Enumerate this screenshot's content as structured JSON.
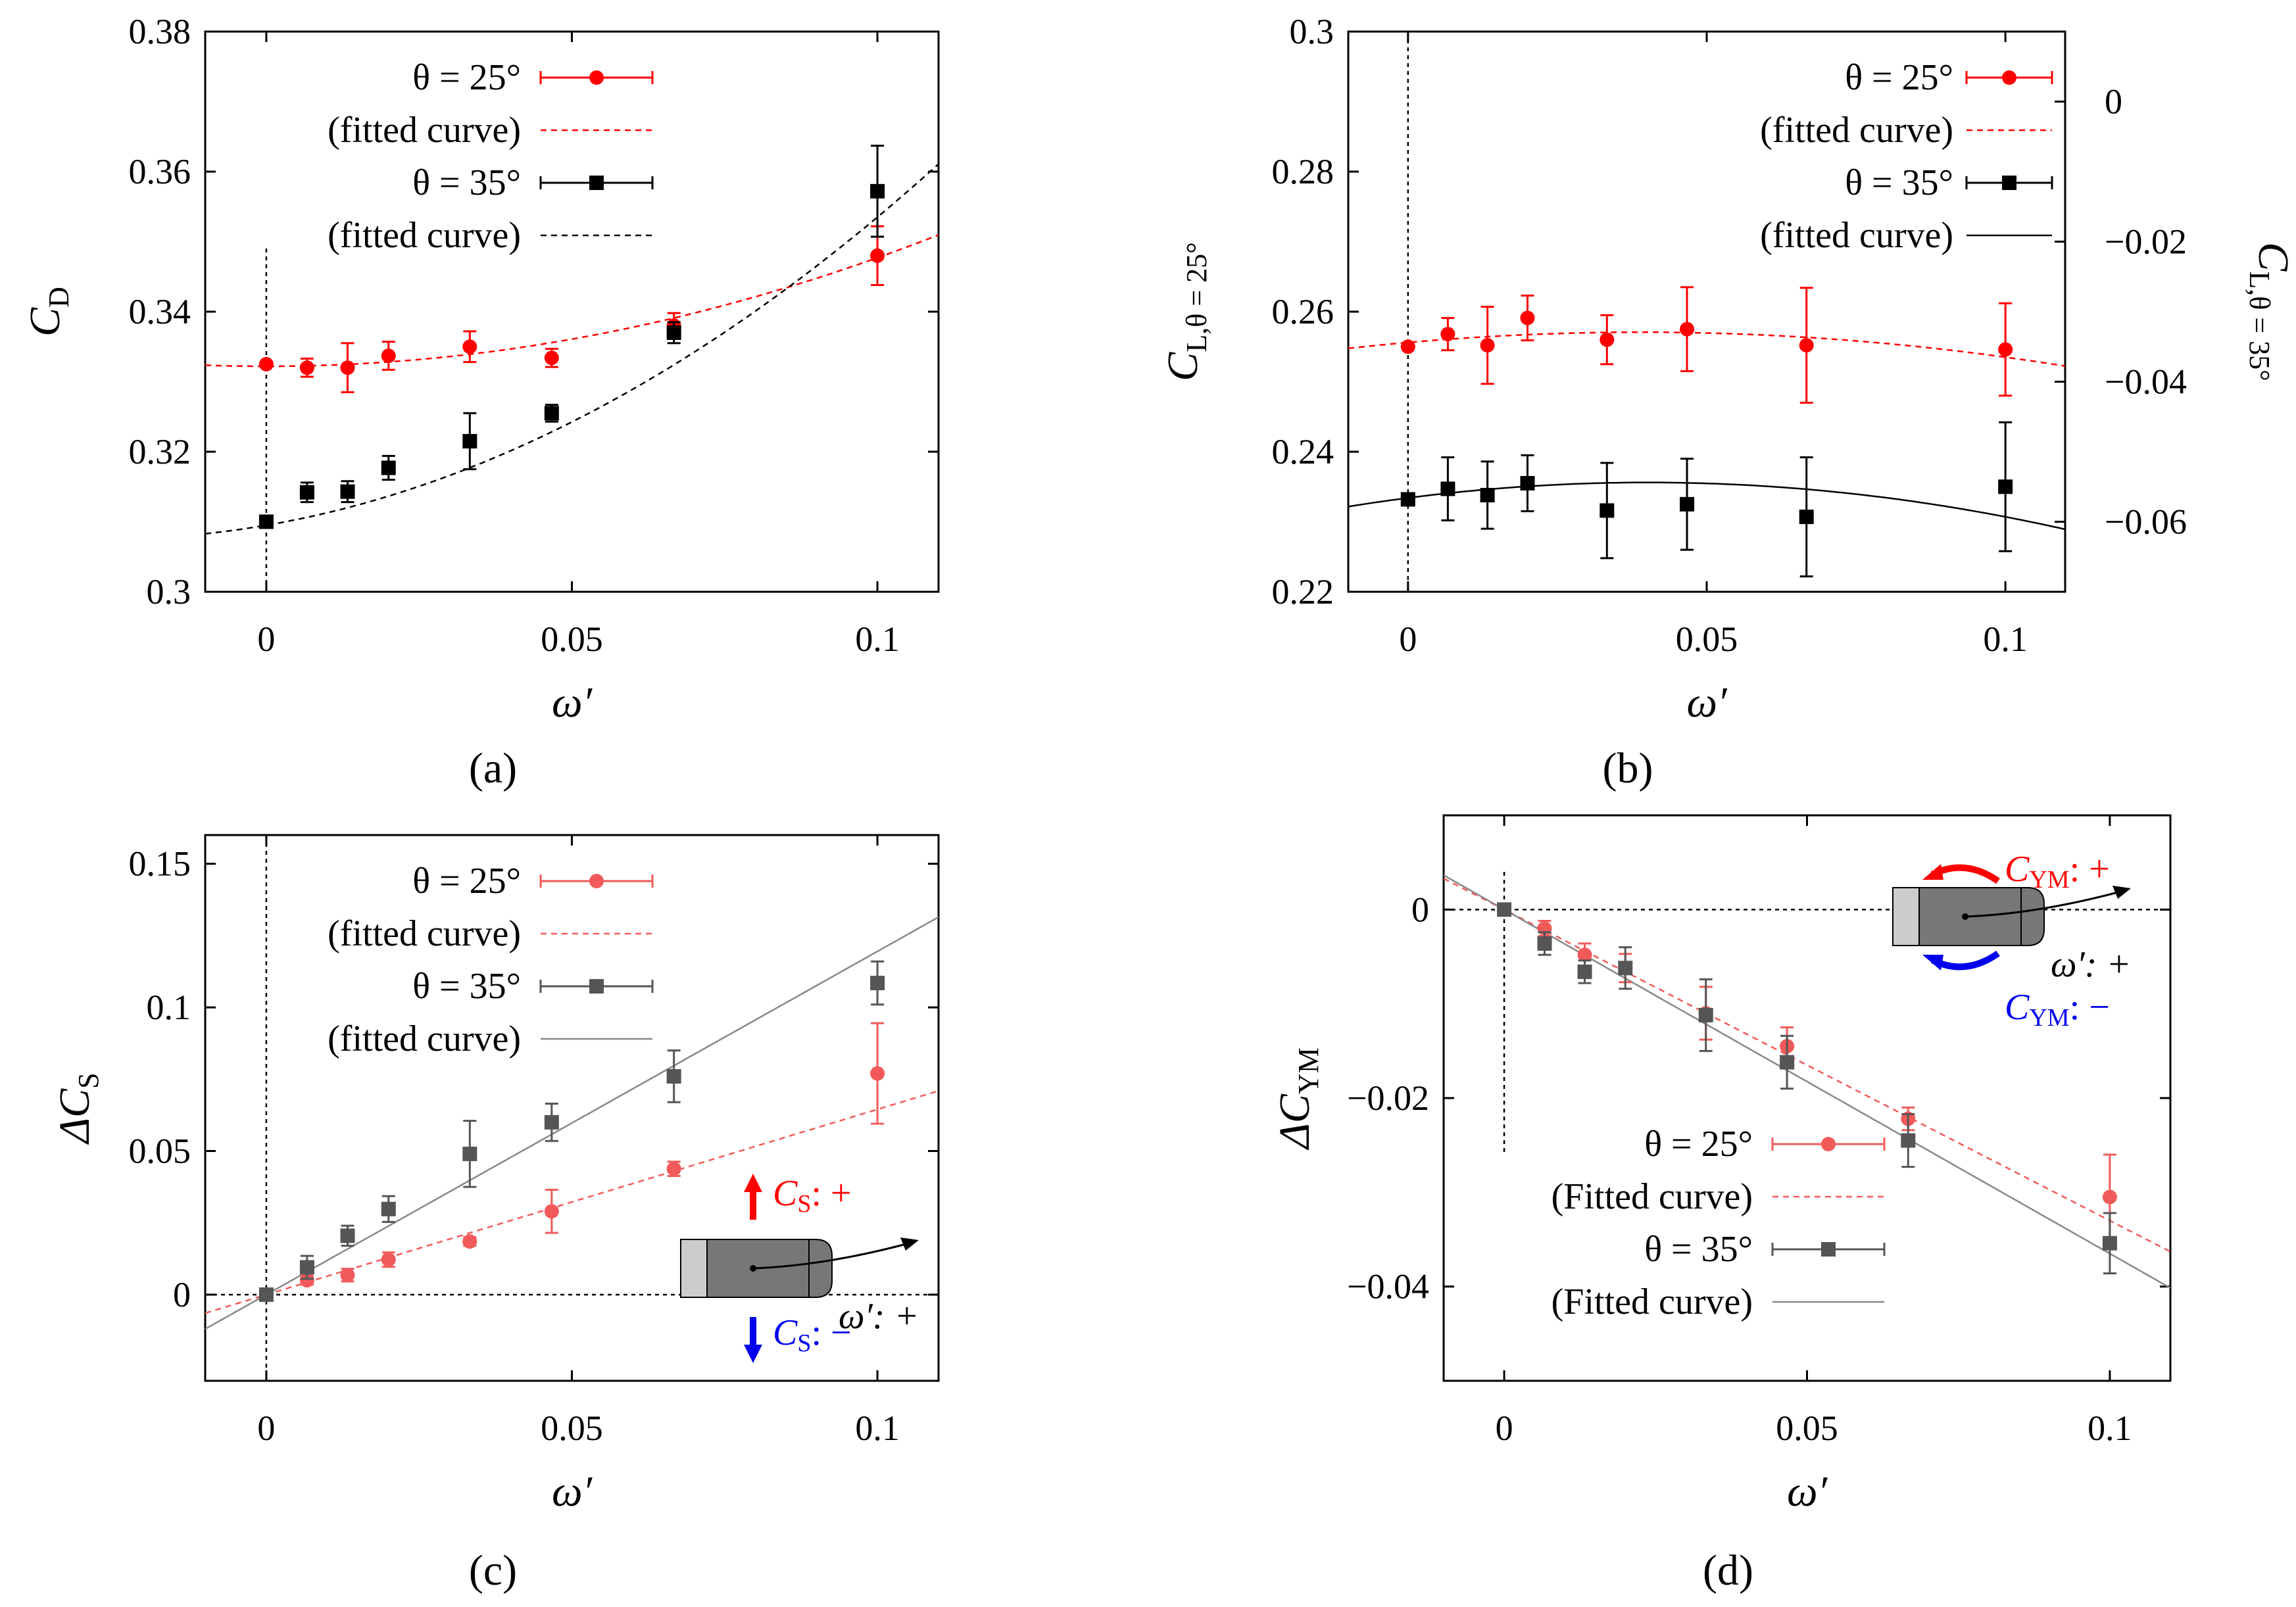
{
  "figure": {
    "captions": [
      "(a)",
      "(b)",
      "(c)",
      "(d)"
    ],
    "colors": {
      "theta25": "#ff0000",
      "theta35": "#000000",
      "theta25_light": "#f25a5a",
      "theta35_light": "#555555",
      "fit35_light": "#888888"
    }
  },
  "chart_data": [
    {
      "id": "a",
      "type": "scatter",
      "caption": "(a)",
      "xlabel": "ω′",
      "ylabel": "C",
      "ylabel_sub": "D",
      "xlim": [
        -0.01,
        0.11
      ],
      "ylim": [
        0.3,
        0.38
      ],
      "xticks": [
        0,
        0.05,
        0.1
      ],
      "xtick_labels": [
        "0",
        "0.05",
        "0.1"
      ],
      "yticks": [
        0.3,
        0.32,
        0.34,
        0.36,
        0.38
      ],
      "ytick_labels": [
        "0.3",
        "0.32",
        "0.34",
        "0.36",
        "0.38"
      ],
      "legend_position": "top-left",
      "legend": [
        "θ = 25°",
        "(fitted curve)",
        "θ = 35°",
        "(fitted curve)"
      ],
      "series": [
        {
          "name": "θ = 25°",
          "marker": "circle",
          "color": "#ff0000",
          "x": [
            0,
            0.00667,
            0.0133,
            0.02,
            0.0333,
            0.0467,
            0.0667,
            0.1
          ],
          "y": [
            0.3325,
            0.332,
            0.332,
            0.3337,
            0.335,
            0.3334,
            0.338,
            0.348
          ],
          "err": [
            0,
            0.0013,
            0.0035,
            0.002,
            0.0022,
            0.0013,
            0.0018,
            0.0042
          ]
        },
        {
          "name": "θ = 35°",
          "marker": "square",
          "color": "#000000",
          "x": [
            0,
            0.00667,
            0.0133,
            0.02,
            0.0333,
            0.0467,
            0.0667,
            0.1
          ],
          "y": [
            0.31,
            0.3142,
            0.3143,
            0.3177,
            0.3215,
            0.3255,
            0.337,
            0.3572
          ],
          "err": [
            0,
            0.0014,
            0.0015,
            0.0017,
            0.004,
            0.0012,
            0.0015,
            0.0065
          ]
        }
      ],
      "fits": [
        {
          "name": "(fitted curve)",
          "color": "#ff0000",
          "dash": true,
          "poly": [
            0.3322,
            0.0,
            1.55
          ]
        },
        {
          "name": "(fitted curve)",
          "color": "#000000",
          "dash": true,
          "poly": [
            0.3095,
            0.15,
            2.9
          ]
        }
      ],
      "zero_lines": {
        "vertical": true,
        "horizontal": false
      }
    },
    {
      "id": "b",
      "type": "scatter",
      "caption": "(b)",
      "xlabel": "ω′",
      "ylabel": "C",
      "ylabel_sub": "L,θ = 25°",
      "ylabel2": "C",
      "ylabel2_sub": "L,θ = 35°",
      "xlim": [
        -0.01,
        0.11
      ],
      "ylim": [
        0.22,
        0.3
      ],
      "y2lim": [
        -0.07,
        0.01
      ],
      "xticks": [
        0,
        0.05,
        0.1
      ],
      "xtick_labels": [
        "0",
        "0.05",
        "0.1"
      ],
      "yticks": [
        0.22,
        0.24,
        0.26,
        0.28,
        0.3
      ],
      "ytick_labels": [
        "0.22",
        "0.24",
        "0.26",
        "0.28",
        "0.3"
      ],
      "y2ticks": [
        -0.06,
        -0.04,
        -0.02,
        0
      ],
      "y2tick_labels": [
        "−0.06",
        "−0.04",
        "−0.02",
        "0"
      ],
      "legend_position": "top-right",
      "legend": [
        "θ = 25°",
        "(fitted curve)",
        "θ = 35°",
        "(fitted curve)"
      ],
      "series": [
        {
          "name": "θ = 25°",
          "marker": "circle",
          "color": "#ff0000",
          "x": [
            0,
            0.00667,
            0.0133,
            0.02,
            0.0333,
            0.0467,
            0.0667,
            0.1
          ],
          "y": [
            0.255,
            0.2568,
            0.2552,
            0.2591,
            0.256,
            0.2575,
            0.2552,
            0.2546
          ],
          "err": [
            0,
            0.0023,
            0.0055,
            0.0032,
            0.0035,
            0.006,
            0.0082,
            0.0066
          ]
        },
        {
          "name": "θ = 35°",
          "marker": "square",
          "color": "#000000",
          "axis": "right",
          "x": [
            0,
            0.00667,
            0.0133,
            0.02,
            0.0333,
            0.0467,
            0.0667,
            0.1
          ],
          "y": [
            -0.0568,
            -0.0553,
            -0.0562,
            -0.0545,
            -0.0584,
            -0.0575,
            -0.0593,
            -0.055
          ],
          "err": [
            0,
            0.0045,
            0.0048,
            0.004,
            0.0068,
            0.0065,
            0.0085,
            0.0092
          ]
        }
      ],
      "fits": [
        {
          "name": "(fitted curve)",
          "color": "#ff0000",
          "dash": true,
          "poly": [
            0.2556,
            0.075,
            -0.96
          ]
        },
        {
          "name": "(fitted curve)",
          "color": "#000000",
          "dash": false,
          "axis": "right",
          "poly": [
            -0.0566,
            0.11,
            -1.37
          ]
        }
      ],
      "zero_lines": {
        "vertical": true,
        "horizontal": false
      }
    },
    {
      "id": "c",
      "type": "scatter",
      "caption": "(c)",
      "xlabel": "ω′",
      "ylabel": "ΔC",
      "ylabel_sub": "S",
      "xlim": [
        -0.01,
        0.11
      ],
      "ylim": [
        -0.03,
        0.16
      ],
      "xticks": [
        0,
        0.05,
        0.1
      ],
      "xtick_labels": [
        "0",
        "0.05",
        "0.1"
      ],
      "yticks": [
        0,
        0.05,
        0.1,
        0.15
      ],
      "ytick_labels": [
        "0",
        "0.05",
        "0.1",
        "0.15"
      ],
      "legend_position": "top-left",
      "legend": [
        "θ = 25°",
        "(fitted curve)",
        "θ = 35°",
        "(fitted curve)"
      ],
      "series": [
        {
          "name": "θ = 25°",
          "marker": "circle",
          "color": "#f25a5a",
          "x": [
            0,
            0.00667,
            0.0133,
            0.02,
            0.0333,
            0.0467,
            0.0667,
            0.1
          ],
          "y": [
            0,
            0.005,
            0.0068,
            0.0122,
            0.0185,
            0.029,
            0.0438,
            0.077
          ],
          "err": [
            0,
            0.0015,
            0.0022,
            0.0025,
            0.0015,
            0.0075,
            0.0025,
            0.0175
          ]
        },
        {
          "name": "θ = 35°",
          "marker": "square",
          "color": "#555555",
          "x": [
            0,
            0.00667,
            0.0133,
            0.02,
            0.0333,
            0.0467,
            0.0667,
            0.1
          ],
          "y": [
            0,
            0.0095,
            0.0205,
            0.0298,
            0.049,
            0.06,
            0.076,
            0.1085
          ],
          "err": [
            0,
            0.004,
            0.0035,
            0.0045,
            0.0115,
            0.0065,
            0.009,
            0.0075
          ]
        }
      ],
      "fits": [
        {
          "name": "(fitted curve)",
          "color": "#f25a5a",
          "dash": true,
          "poly": [
            0,
            0.645,
            0
          ]
        },
        {
          "name": "(fitted curve)",
          "color": "#888888",
          "dash": false,
          "poly": [
            0,
            1.195,
            0
          ]
        }
      ],
      "zero_lines": {
        "vertical": true,
        "horizontal": true
      },
      "annotation": {
        "plus_label": "C",
        "plus_sub": "S",
        "plus_text": ": +",
        "minus_label": "C",
        "minus_sub": "S",
        "minus_text": ": −",
        "omega_text": "ω′: +"
      }
    },
    {
      "id": "d",
      "type": "scatter",
      "caption": "(d)",
      "xlabel": "ω′",
      "ylabel": "ΔC",
      "ylabel_sub": "YM",
      "xlim": [
        -0.01,
        0.11
      ],
      "ylim": [
        -0.05,
        0.01
      ],
      "xticks": [
        0,
        0.05,
        0.1
      ],
      "xtick_labels": [
        "0",
        "0.05",
        "0.1"
      ],
      "yticks": [
        -0.04,
        -0.02,
        0
      ],
      "ytick_labels": [
        "−0.04",
        "−0.02",
        "0"
      ],
      "legend_position": "bottom-left",
      "legend": [
        "θ = 25°",
        "(Fitted curve)",
        "θ = 35°",
        "(Fitted curve)"
      ],
      "series": [
        {
          "name": "θ = 25°",
          "marker": "circle",
          "color": "#f25a5a",
          "x": [
            0,
            0.00667,
            0.0133,
            0.02,
            0.0333,
            0.0467,
            0.0667,
            0.1
          ],
          "y": [
            0,
            -0.002,
            -0.0048,
            -0.0062,
            -0.011,
            -0.0145,
            -0.0222,
            -0.0305
          ],
          "err": [
            0,
            0.0008,
            0.0012,
            0.0015,
            0.0028,
            0.002,
            0.0012,
            0.0045
          ]
        },
        {
          "name": "θ = 35°",
          "marker": "square",
          "color": "#555555",
          "x": [
            0,
            0.00667,
            0.0133,
            0.02,
            0.0333,
            0.0467,
            0.0667,
            0.1
          ],
          "y": [
            0,
            -0.0036,
            -0.0066,
            -0.0062,
            -0.0112,
            -0.0162,
            -0.0245,
            -0.0354
          ],
          "err": [
            0,
            0.0012,
            0.0012,
            0.0022,
            0.0038,
            0.0028,
            0.0028,
            0.0032
          ]
        }
      ],
      "fits": [
        {
          "name": "(Fitted curve)",
          "color": "#f25a5a",
          "dash": true,
          "poly": [
            0,
            -0.33,
            0
          ]
        },
        {
          "name": "(Fitted curve)",
          "color": "#888888",
          "dash": false,
          "poly": [
            0,
            -0.365,
            0
          ]
        }
      ],
      "zero_lines": {
        "vertical": true,
        "horizontal": true
      },
      "annotation": {
        "plus_label": "C",
        "plus_sub": "YM",
        "plus_text": ": +",
        "minus_label": "C",
        "minus_sub": "YM",
        "minus_text": ": −",
        "omega_text": "ω′: +"
      }
    }
  ]
}
